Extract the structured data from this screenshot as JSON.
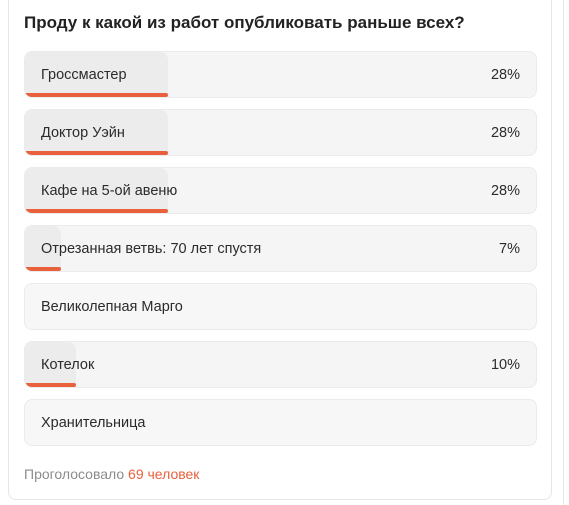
{
  "poll": {
    "question": "Проду к какой из работ опубликовать раньше всех?",
    "accent_color": "#e8603c",
    "options": [
      {
        "label": "Гроссмастер",
        "percent_text": "28%",
        "share": 0.28
      },
      {
        "label": "Доктор Уэйн",
        "percent_text": "28%",
        "share": 0.28
      },
      {
        "label": "Кафе на 5-ой авеню",
        "percent_text": "28%",
        "share": 0.28
      },
      {
        "label": "Отрезанная ветвь: 70 лет спустя",
        "percent_text": "7%",
        "share": 0.07
      },
      {
        "label": "Великолепная Марго",
        "percent_text": "",
        "share": 0
      },
      {
        "label": "Котелок",
        "percent_text": "10%",
        "share": 0.1
      },
      {
        "label": "Хранительница",
        "percent_text": "",
        "share": 0
      }
    ],
    "footer": {
      "prefix": "Проголосовало",
      "count_text": "69 человек"
    }
  }
}
